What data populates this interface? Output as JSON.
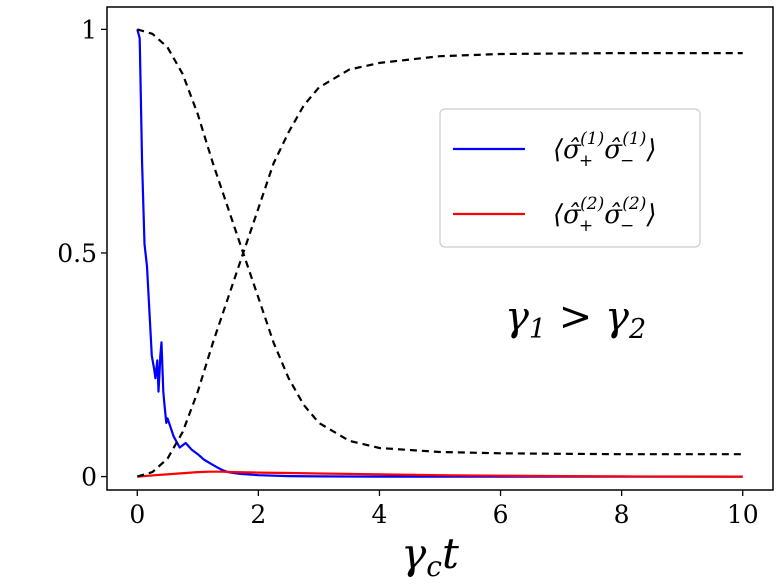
{
  "chart_data": {
    "type": "line",
    "xlabel": "γ",
    "xlabel_sub": "c",
    "xlabel_tail": "t",
    "xlim": [
      -0.5,
      10.5
    ],
    "ylim": [
      -0.03,
      1.05
    ],
    "xticks": [
      0,
      2,
      4,
      6,
      8,
      10
    ],
    "xtick_labels": [
      "0",
      "2",
      "4",
      "6",
      "8",
      "10"
    ],
    "yticks": [
      0,
      0.5,
      1
    ],
    "ytick_labels": [
      "0",
      "0.5",
      "1"
    ],
    "grid": false,
    "legend_position": "upper-right",
    "annotation": {
      "text_parts": [
        "γ",
        "1",
        " > γ",
        "2"
      ],
      "x": 7.1,
      "y": 0.33
    },
    "series": [
      {
        "legend_parts": [
          "⟨σ̂",
          "+",
          "(1)",
          "σ̂",
          "−",
          "(1)",
          "⟩"
        ],
        "color": "#0000ff",
        "style": "solid",
        "x": [
          0,
          0.04,
          0.08,
          0.12,
          0.16,
          0.2,
          0.24,
          0.28,
          0.3,
          0.33,
          0.35,
          0.37,
          0.38,
          0.4,
          0.43,
          0.45,
          0.48,
          0.5,
          0.55,
          0.6,
          0.7,
          0.8,
          0.9,
          1.0,
          1.1,
          1.2,
          1.3,
          1.4,
          1.5,
          1.7,
          2.0,
          2.5,
          3,
          4,
          5,
          6,
          7,
          8,
          9,
          10
        ],
        "y": [
          1.0,
          0.98,
          0.7,
          0.52,
          0.47,
          0.37,
          0.27,
          0.24,
          0.22,
          0.26,
          0.19,
          0.24,
          0.27,
          0.3,
          0.19,
          0.16,
          0.12,
          0.13,
          0.11,
          0.09,
          0.065,
          0.075,
          0.06,
          0.05,
          0.038,
          0.03,
          0.022,
          0.015,
          0.01,
          0.006,
          0.003,
          0.001,
          0.0005,
          0.0,
          0.0,
          0.0,
          0.0,
          0.0,
          0.0,
          0.0
        ]
      },
      {
        "legend_parts": [
          "⟨σ̂",
          "+",
          "(2)",
          "σ̂",
          "−",
          "(2)",
          "⟩"
        ],
        "color": "#ff0000",
        "style": "solid",
        "x": [
          0,
          0.3,
          0.6,
          0.8,
          1.0,
          1.2,
          1.4,
          1.6,
          2.0,
          2.5,
          3,
          4,
          5,
          6,
          7,
          8,
          9,
          10
        ],
        "y": [
          0.0,
          0.003,
          0.006,
          0.008,
          0.01,
          0.011,
          0.011,
          0.01,
          0.009,
          0.008,
          0.007,
          0.005,
          0.003,
          0.002,
          0.001,
          0.0005,
          0.0002,
          0.0
        ]
      },
      {
        "color": "#000000",
        "style": "dashed",
        "x": [
          0,
          0.25,
          0.5,
          0.75,
          1.0,
          1.25,
          1.5,
          1.75,
          2.0,
          2.25,
          2.5,
          2.75,
          3.0,
          3.5,
          4,
          5,
          6,
          7,
          8,
          9,
          10
        ],
        "y": [
          1.0,
          0.99,
          0.96,
          0.9,
          0.81,
          0.7,
          0.6,
          0.5,
          0.4,
          0.3,
          0.22,
          0.16,
          0.12,
          0.08,
          0.064,
          0.055,
          0.052,
          0.051,
          0.05,
          0.05,
          0.05
        ]
      },
      {
        "color": "#000000",
        "style": "dashed",
        "x": [
          0,
          0.25,
          0.5,
          0.75,
          1.0,
          1.25,
          1.5,
          1.75,
          2.0,
          2.25,
          2.5,
          2.75,
          3.0,
          3.5,
          4,
          5,
          6,
          7,
          8,
          9,
          10
        ],
        "y": [
          0.0,
          0.01,
          0.04,
          0.1,
          0.19,
          0.3,
          0.4,
          0.5,
          0.6,
          0.7,
          0.77,
          0.83,
          0.87,
          0.91,
          0.925,
          0.94,
          0.945,
          0.946,
          0.947,
          0.947,
          0.947
        ]
      }
    ]
  }
}
